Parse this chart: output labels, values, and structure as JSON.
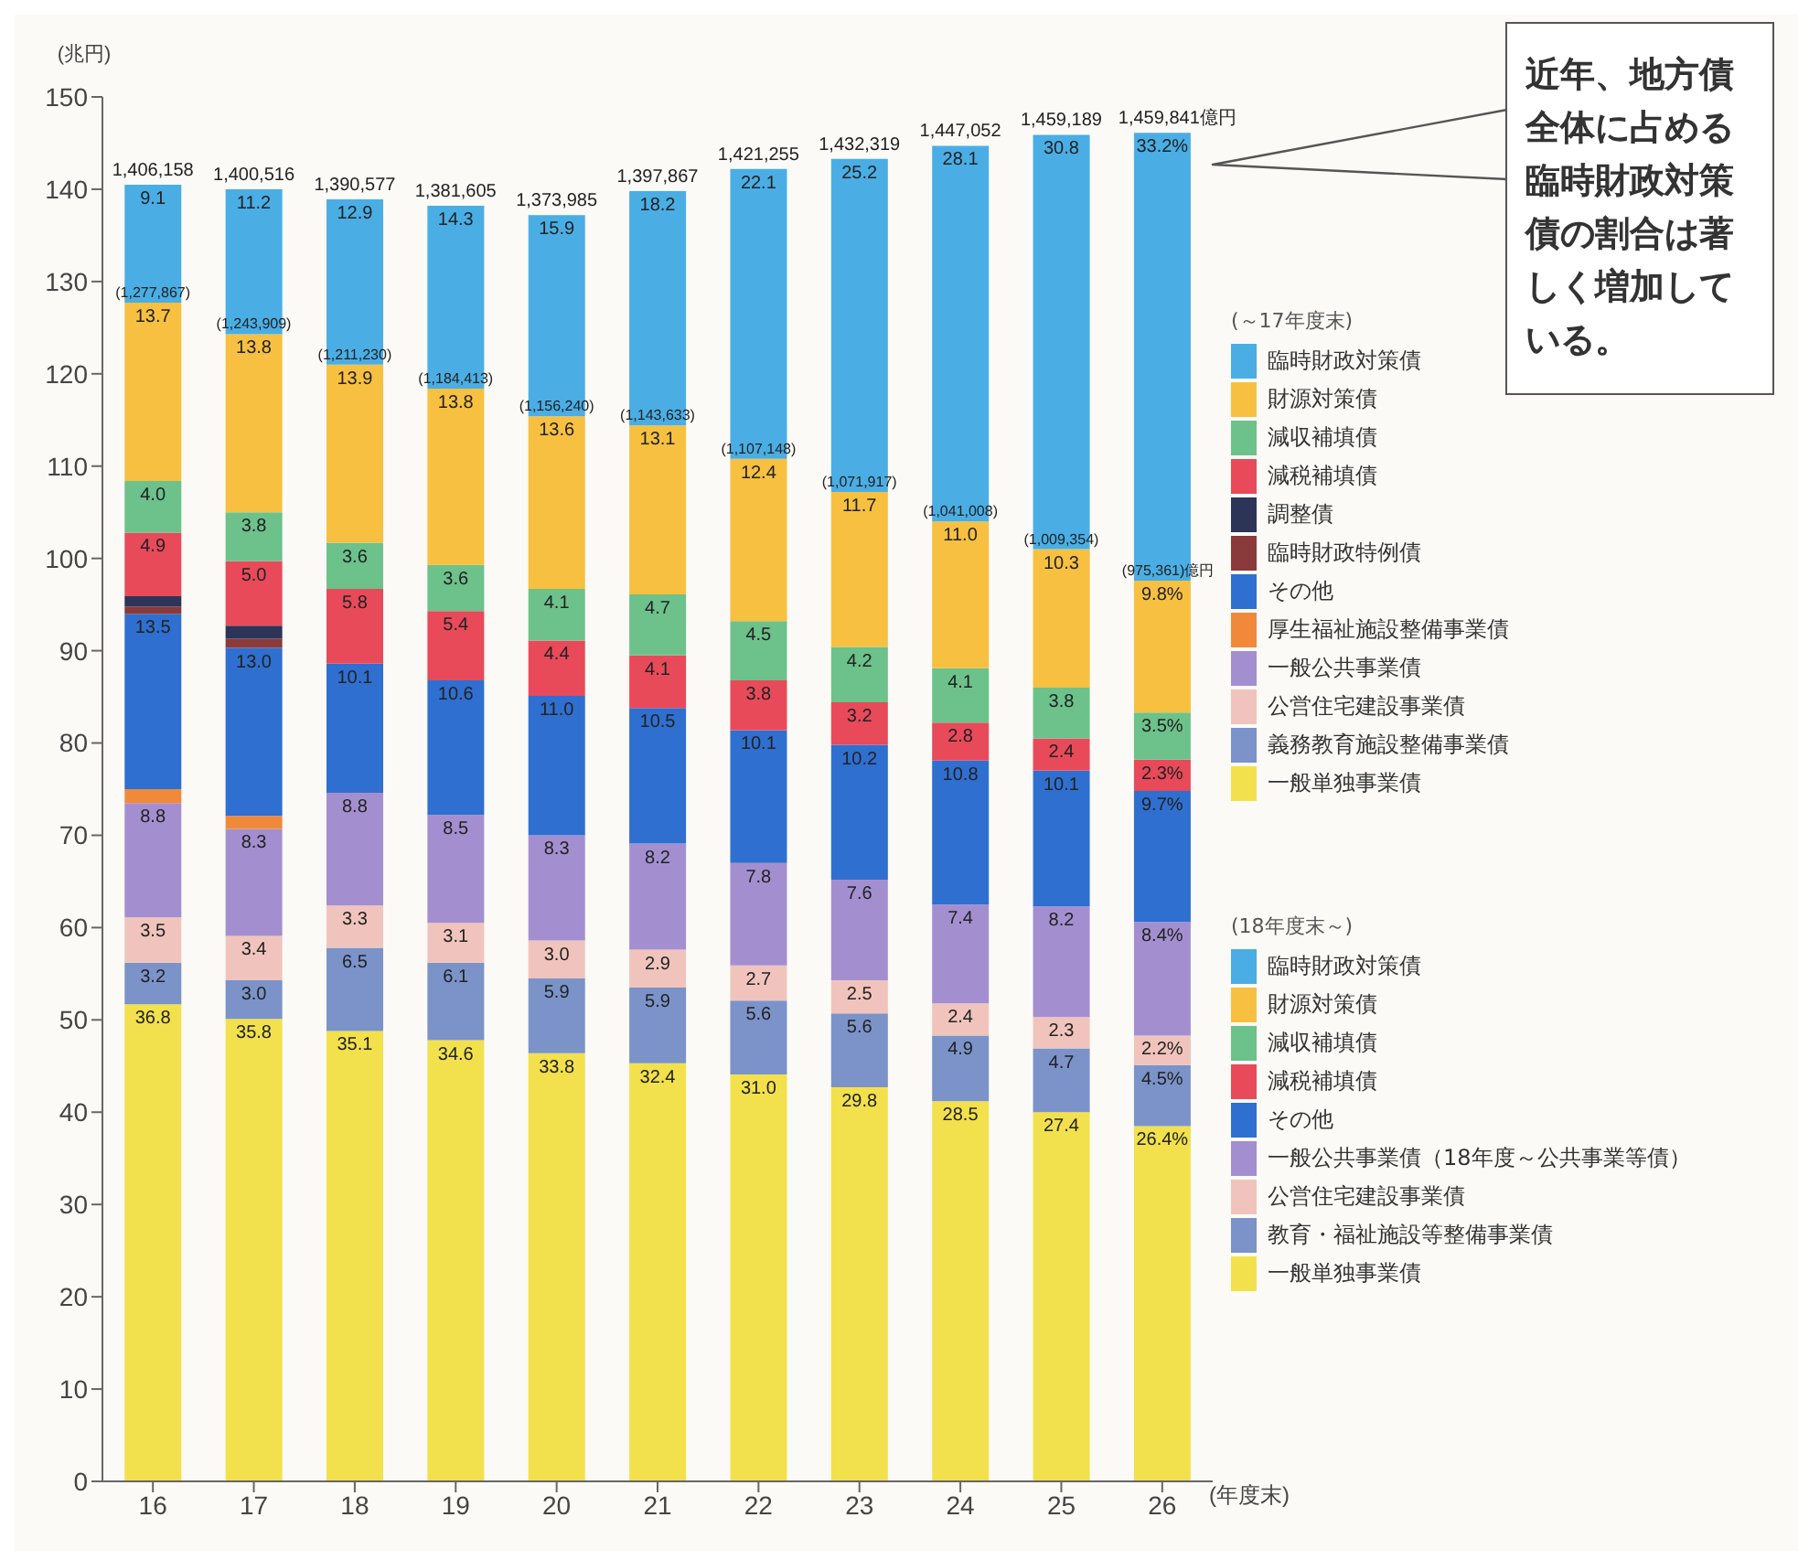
{
  "chart_data": {
    "type": "bar",
    "stacked": true,
    "ylabel": "(兆円)",
    "xlabel": "(年度末)",
    "legend": "right",
    "legend_title": "(～17年度末)",
    "categories": [
      "16",
      "17",
      "18",
      "19",
      "20",
      "21",
      "22",
      "23",
      "24",
      "25",
      "26"
    ],
    "ylim": [
      0,
      150
    ],
    "yticks": [
      0,
      10,
      20,
      30,
      40,
      50,
      60,
      70,
      80,
      90,
      100,
      110,
      120,
      130,
      140,
      150
    ],
    "annotations": [
      "近年、地方債全体に占める臨時財政対策債の割合は著しく増加している。",
      "(18年度末～)",
      {
        "text": "1,406,158",
        "x": "16",
        "y": 140.5
      },
      {
        "text": "1,400,516",
        "x": "17",
        "y": 140.0
      },
      {
        "text": "1,390,577",
        "x": "18",
        "y": 138.9
      },
      {
        "text": "1,381,605",
        "x": "19",
        "y": 138.2
      },
      {
        "text": "1,373,985",
        "x": "20",
        "y": 137.2
      },
      {
        "text": "1,397,867",
        "x": "21",
        "y": 139.8
      },
      {
        "text": "1,421,255",
        "x": "22",
        "y": 142.2
      },
      {
        "text": "1,432,319",
        "x": "23",
        "y": 143.3
      },
      {
        "text": "1,447,052",
        "x": "24",
        "y": 144.7
      },
      {
        "text": "1,459,189",
        "x": "25",
        "y": 145.9
      },
      {
        "text": "1,459,841億円",
        "x": "26",
        "y": 146.1
      },
      {
        "text": "(1,277,867)",
        "x": "16",
        "y": 127.7
      },
      {
        "text": "(1,243,909)",
        "x": "17",
        "y": 124.3
      },
      {
        "text": "(1,211,230)",
        "x": "18",
        "y": 121.0
      },
      {
        "text": "(1,184,413)",
        "x": "19",
        "y": 118.4
      },
      {
        "text": "(1,156,240)",
        "x": "20",
        "y": 115.4
      },
      {
        "text": "(1,143,633)",
        "x": "21",
        "y": 114.4
      },
      {
        "text": "(1,107,148)",
        "x": "22",
        "y": 110.8
      },
      {
        "text": "(1,071,917)",
        "x": "23",
        "y": 107.2
      },
      {
        "text": "(1,041,008)",
        "x": "24",
        "y": 104.0
      },
      {
        "text": "(1,009,354)",
        "x": "25",
        "y": 101.0
      },
      {
        "text": "(975,361)億円",
        "x": "26",
        "y": 97.6
      },
      {
        "text": "36.8",
        "x": "16",
        "y": 51.7
      },
      {
        "text": "3.2",
        "x": "16",
        "y": 56.2
      },
      {
        "text": "3.5",
        "x": "16",
        "y": 61.1
      },
      {
        "text": "8.8",
        "x": "16",
        "y": 73.5
      },
      {
        "text": "13.5",
        "x": "16",
        "y": 94.0
      },
      {
        "text": "4.9",
        "x": "16",
        "y": 102.8
      },
      {
        "text": "4.0",
        "x": "16",
        "y": 108.4
      },
      {
        "text": "13.7",
        "x": "16",
        "y": 127.7
      },
      {
        "text": "9.1",
        "x": "16",
        "y": 140.5
      },
      {
        "text": "35.8",
        "x": "17",
        "y": 50.1
      },
      {
        "text": "3.0",
        "x": "17",
        "y": 54.3
      },
      {
        "text": "3.4",
        "x": "17",
        "y": 59.1
      },
      {
        "text": "8.3",
        "x": "17",
        "y": 70.7
      },
      {
        "text": "13.0",
        "x": "17",
        "y": 90.3
      },
      {
        "text": "5.0",
        "x": "17",
        "y": 99.7
      },
      {
        "text": "3.8",
        "x": "17",
        "y": 105.0
      },
      {
        "text": "13.8",
        "x": "17",
        "y": 124.3
      },
      {
        "text": "11.2",
        "x": "17",
        "y": 140.0
      },
      {
        "text": "35.1",
        "x": "18",
        "y": 48.8
      },
      {
        "text": "6.5",
        "x": "18",
        "y": 57.8
      },
      {
        "text": "3.3",
        "x": "18",
        "y": 62.4
      },
      {
        "text": "8.8",
        "x": "18",
        "y": 74.6
      },
      {
        "text": "10.1",
        "x": "18",
        "y": 88.6
      },
      {
        "text": "5.8",
        "x": "18",
        "y": 96.7
      },
      {
        "text": "3.6",
        "x": "18",
        "y": 101.7
      },
      {
        "text": "13.9",
        "x": "18",
        "y": 121.0
      },
      {
        "text": "12.9",
        "x": "18",
        "y": 138.9
      },
      {
        "text": "34.6",
        "x": "19",
        "y": 47.8
      },
      {
        "text": "6.1",
        "x": "19",
        "y": 56.2
      },
      {
        "text": "3.1",
        "x": "19",
        "y": 60.5
      },
      {
        "text": "8.5",
        "x": "19",
        "y": 72.2
      },
      {
        "text": "10.6",
        "x": "19",
        "y": 86.8
      },
      {
        "text": "5.4",
        "x": "19",
        "y": 94.3
      },
      {
        "text": "3.6",
        "x": "19",
        "y": 99.3
      },
      {
        "text": "13.8",
        "x": "19",
        "y": 118.4
      },
      {
        "text": "14.3",
        "x": "19",
        "y": 138.2
      },
      {
        "text": "33.8",
        "x": "20",
        "y": 46.4
      },
      {
        "text": "5.9",
        "x": "20",
        "y": 54.5
      },
      {
        "text": "3.0",
        "x": "20",
        "y": 58.6
      },
      {
        "text": "8.3",
        "x": "20",
        "y": 70.0
      },
      {
        "text": "11.0",
        "x": "20",
        "y": 85.1
      },
      {
        "text": "4.4",
        "x": "20",
        "y": 91.1
      },
      {
        "text": "4.1",
        "x": "20",
        "y": 96.7
      },
      {
        "text": "13.6",
        "x": "20",
        "y": 115.4
      },
      {
        "text": "15.9",
        "x": "20",
        "y": 137.2
      },
      {
        "text": "32.4",
        "x": "21",
        "y": 45.3
      },
      {
        "text": "5.9",
        "x": "21",
        "y": 53.5
      },
      {
        "text": "2.9",
        "x": "21",
        "y": 57.6
      },
      {
        "text": "8.2",
        "x": "21",
        "y": 69.1
      },
      {
        "text": "10.5",
        "x": "21",
        "y": 83.8
      },
      {
        "text": "4.1",
        "x": "21",
        "y": 89.5
      },
      {
        "text": "4.7",
        "x": "21",
        "y": 96.1
      },
      {
        "text": "13.1",
        "x": "21",
        "y": 114.4
      },
      {
        "text": "18.2",
        "x": "21",
        "y": 139.8
      },
      {
        "text": "31.0",
        "x": "22",
        "y": 44.1
      },
      {
        "text": "5.6",
        "x": "22",
        "y": 52.1
      },
      {
        "text": "2.7",
        "x": "22",
        "y": 55.9
      },
      {
        "text": "7.8",
        "x": "22",
        "y": 67.0
      },
      {
        "text": "10.1",
        "x": "22",
        "y": 81.4
      },
      {
        "text": "3.8",
        "x": "22",
        "y": 86.8
      },
      {
        "text": "4.5",
        "x": "22",
        "y": 93.2
      },
      {
        "text": "12.4",
        "x": "22",
        "y": 110.8
      },
      {
        "text": "22.1",
        "x": "22",
        "y": 142.2
      },
      {
        "text": "29.8",
        "x": "23",
        "y": 42.7
      },
      {
        "text": "5.6",
        "x": "23",
        "y": 50.7
      },
      {
        "text": "2.5",
        "x": "23",
        "y": 54.3
      },
      {
        "text": "7.6",
        "x": "23",
        "y": 65.2
      },
      {
        "text": "10.2",
        "x": "23",
        "y": 79.8
      },
      {
        "text": "3.2",
        "x": "23",
        "y": 84.4
      },
      {
        "text": "4.2",
        "x": "23",
        "y": 90.4
      },
      {
        "text": "11.7",
        "x": "23",
        "y": 107.2
      },
      {
        "text": "25.2",
        "x": "23",
        "y": 143.3
      },
      {
        "text": "28.5",
        "x": "24",
        "y": 41.2
      },
      {
        "text": "4.9",
        "x": "24",
        "y": 48.3
      },
      {
        "text": "2.4",
        "x": "24",
        "y": 51.8
      },
      {
        "text": "7.4",
        "x": "24",
        "y": 62.5
      },
      {
        "text": "10.8",
        "x": "24",
        "y": 78.1
      },
      {
        "text": "2.8",
        "x": "24",
        "y": 82.2
      },
      {
        "text": "4.1",
        "x": "24",
        "y": 88.1
      },
      {
        "text": "11.0",
        "x": "24",
        "y": 104.0
      },
      {
        "text": "28.1",
        "x": "24",
        "y": 144.7
      },
      {
        "text": "27.4",
        "x": "25",
        "y": 40.0
      },
      {
        "text": "4.7",
        "x": "25",
        "y": 46.9
      },
      {
        "text": "2.3",
        "x": "25",
        "y": 50.3
      },
      {
        "text": "8.2",
        "x": "25",
        "y": 62.3
      },
      {
        "text": "10.1",
        "x": "25",
        "y": 77.0
      },
      {
        "text": "2.4",
        "x": "25",
        "y": 80.5
      },
      {
        "text": "3.8",
        "x": "25",
        "y": 86.0
      },
      {
        "text": "10.3",
        "x": "25",
        "y": 101.0
      },
      {
        "text": "30.8",
        "x": "25",
        "y": 145.9
      },
      {
        "text": "26.4%",
        "x": "26",
        "y": 38.5
      },
      {
        "text": "4.5%",
        "x": "26",
        "y": 45.1
      },
      {
        "text": "2.2%",
        "x": "26",
        "y": 48.3
      },
      {
        "text": "8.4%",
        "x": "26",
        "y": 60.6
      },
      {
        "text": "9.7%",
        "x": "26",
        "y": 74.8
      },
      {
        "text": "2.3%",
        "x": "26",
        "y": 78.2
      },
      {
        "text": "3.5%",
        "x": "26",
        "y": 83.3
      },
      {
        "text": "9.8%",
        "x": "26",
        "y": 97.6
      },
      {
        "text": "33.2%",
        "x": "26",
        "y": 146.1
      }
    ],
    "series": [
      {
        "name": "一般単独事業債",
        "color": "#f2e14c",
        "values": [
          51.7,
          50.1,
          null,
          null,
          null,
          null,
          null,
          null,
          null,
          null,
          null
        ]
      },
      {
        "name": "義務教育施設整備事業債",
        "color": "#7b93c9",
        "values": [
          4.5,
          4.2,
          null,
          null,
          null,
          null,
          null,
          null,
          null,
          null,
          null
        ]
      },
      {
        "name": "公営住宅建設事業債",
        "color": "#f0c4bc",
        "values": [
          4.9,
          4.8,
          null,
          null,
          null,
          null,
          null,
          null,
          null,
          null,
          null
        ]
      },
      {
        "name": "一般公共事業債",
        "color": "#a38fd0",
        "values": [
          12.4,
          11.6,
          null,
          null,
          null,
          null,
          null,
          null,
          null,
          null,
          null
        ]
      },
      {
        "name": "厚生福祉施設整備事業債",
        "color": "#f08a3a",
        "values": [
          1.5,
          1.4,
          null,
          null,
          null,
          null,
          null,
          null,
          null,
          null,
          null
        ]
      },
      {
        "name": "その他",
        "color": "#2f6fd0",
        "values": [
          19.0,
          18.2,
          null,
          null,
          null,
          null,
          null,
          null,
          null,
          null,
          null
        ]
      },
      {
        "name": "臨時財政特例債",
        "color": "#8a3a3a",
        "values": [
          0.8,
          1.0,
          null,
          null,
          null,
          null,
          null,
          null,
          null,
          null,
          null
        ]
      },
      {
        "name": "調整債",
        "color": "#2c3458",
        "values": [
          1.1,
          1.4,
          null,
          null,
          null,
          null,
          null,
          null,
          null,
          null,
          null
        ]
      },
      {
        "name": "減税補填債",
        "color": "#e84a5a",
        "values": [
          6.9,
          7.0,
          null,
          null,
          null,
          null,
          null,
          null,
          null,
          null,
          null
        ]
      },
      {
        "name": "減収補填債",
        "color": "#6cc28a",
        "values": [
          5.6,
          5.3,
          null,
          null,
          null,
          null,
          null,
          null,
          null,
          null,
          null
        ]
      },
      {
        "name": "財源対策債",
        "color": "#f7c040",
        "values": [
          19.3,
          19.3,
          null,
          null,
          null,
          null,
          null,
          null,
          null,
          null,
          null
        ]
      },
      {
        "name": "臨時財政対策債",
        "color": "#4aaee5",
        "values": [
          12.8,
          15.7,
          null,
          null,
          null,
          null,
          null,
          null,
          null,
          null,
          null
        ]
      },
      {
        "name": "一般単独事業債",
        "color": "#f2e14c",
        "values": [
          null,
          null,
          48.8,
          47.8,
          46.4,
          45.3,
          44.1,
          42.7,
          41.2,
          40.0,
          38.5
        ]
      },
      {
        "name": "教育・福祉施設等整備事業債",
        "color": "#7b93c9",
        "values": [
          null,
          null,
          9.0,
          8.4,
          8.1,
          8.2,
          8.0,
          8.0,
          7.1,
          6.9,
          6.6
        ]
      },
      {
        "name": "公営住宅建設事業債",
        "color": "#f0c4bc",
        "values": [
          null,
          null,
          4.6,
          4.3,
          4.1,
          4.1,
          3.8,
          3.6,
          3.5,
          3.4,
          3.2
        ]
      },
      {
        "name": "一般公共事業債（18年度～公共事業等債）",
        "color": "#a38fd0",
        "values": [
          null,
          null,
          12.2,
          11.7,
          11.4,
          11.5,
          11.1,
          10.9,
          10.7,
          12.0,
          12.3
        ]
      },
      {
        "name": "その他",
        "color": "#2f6fd0",
        "values": [
          null,
          null,
          14.0,
          14.6,
          15.1,
          14.7,
          14.4,
          14.6,
          15.6,
          14.7,
          14.2
        ]
      },
      {
        "name": "減税補填債",
        "color": "#e84a5a",
        "values": [
          null,
          null,
          8.1,
          7.5,
          6.0,
          5.7,
          5.4,
          4.6,
          4.1,
          3.5,
          3.4
        ]
      },
      {
        "name": "減収補填債",
        "color": "#6cc28a",
        "values": [
          null,
          null,
          5.0,
          5.0,
          5.6,
          6.6,
          6.4,
          6.0,
          5.9,
          5.5,
          5.1
        ]
      },
      {
        "name": "財源対策債",
        "color": "#f7c040",
        "values": [
          null,
          null,
          19.3,
          19.1,
          18.7,
          18.3,
          17.6,
          16.8,
          15.9,
          15.0,
          14.3
        ]
      },
      {
        "name": "臨時財政対策債",
        "color": "#4aaee5",
        "values": [
          null,
          null,
          17.9,
          19.8,
          21.8,
          25.4,
          31.4,
          36.1,
          40.7,
          44.9,
          48.5
        ]
      }
    ]
  }
}
